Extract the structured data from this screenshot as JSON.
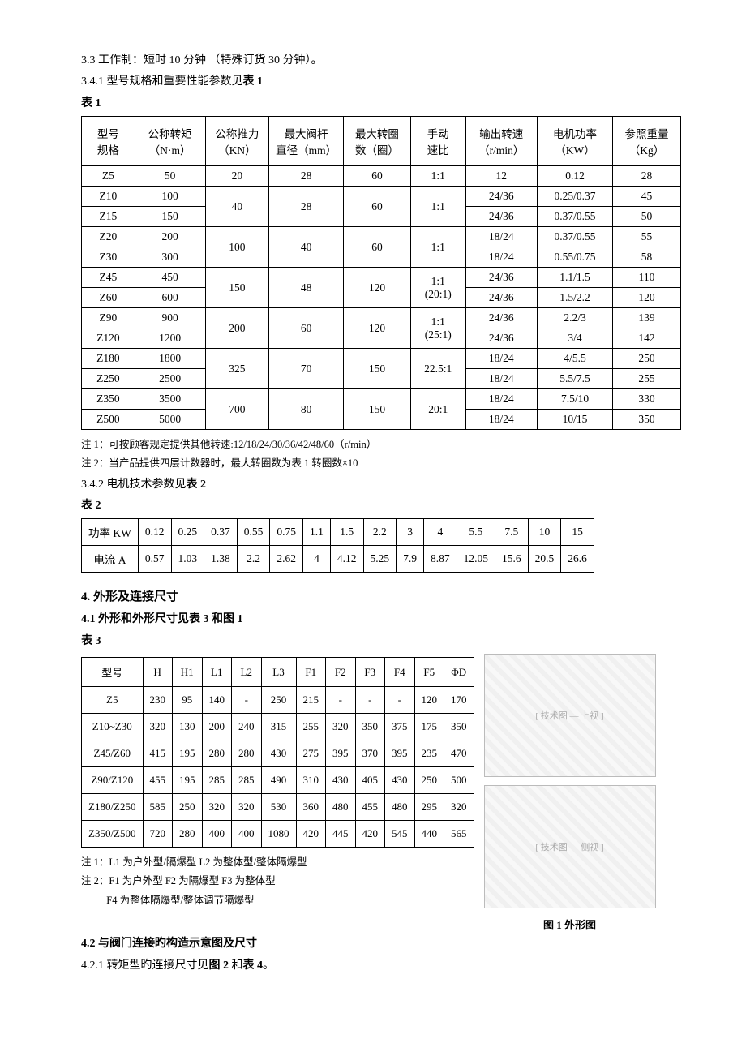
{
  "intro": {
    "line33": "3.3 工作制：短时 10 分钟 （特殊订货 30 分钟）。",
    "line341": "3.4.1 型号规格和重要性能参数见",
    "line341_bold": "表 1",
    "t1_label": "表 1"
  },
  "table1": {
    "headers": [
      "型号\n规格",
      "公称转矩\n（N·m）",
      "公称推力\n（KN）",
      "最大阀杆\n直径（mm）",
      "最大转圈\n数（圈）",
      "手动\n速比",
      "输出转速\n（r/min）",
      "电机功率\n（KW）",
      "参照重量\n（Kg）"
    ],
    "col_widths": [
      "60",
      "80",
      "70",
      "90",
      "80",
      "60",
      "80",
      "90",
      "80"
    ],
    "rows": [
      {
        "cells": [
          "Z5",
          "50",
          "20",
          "28",
          "60",
          "1:1",
          "12",
          "0.12",
          "28"
        ],
        "rowspan": [
          1,
          1,
          1,
          1,
          1,
          1,
          1,
          1,
          1
        ]
      },
      {
        "cells": [
          "Z10",
          "100",
          "40",
          "28",
          "60",
          "1:1",
          "24/36",
          "0.25/0.37",
          "45"
        ],
        "rowspan": [
          1,
          1,
          2,
          2,
          2,
          2,
          1,
          1,
          1
        ]
      },
      {
        "cells": [
          "Z15",
          "150",
          "24/36",
          "0.37/0.55",
          "50"
        ],
        "rowspan": [
          1,
          1,
          1,
          1,
          1
        ]
      },
      {
        "cells": [
          "Z20",
          "200",
          "100",
          "40",
          "60",
          "1:1",
          "18/24",
          "0.37/0.55",
          "55"
        ],
        "rowspan": [
          1,
          1,
          2,
          2,
          2,
          2,
          1,
          1,
          1
        ]
      },
      {
        "cells": [
          "Z30",
          "300",
          "18/24",
          "0.55/0.75",
          "58"
        ],
        "rowspan": [
          1,
          1,
          1,
          1,
          1
        ]
      },
      {
        "cells": [
          "Z45",
          "450",
          "150",
          "48",
          "120",
          "1:1\n(20:1)",
          "24/36",
          "1.1/1.5",
          "110"
        ],
        "rowspan": [
          1,
          1,
          2,
          2,
          2,
          2,
          1,
          1,
          1
        ]
      },
      {
        "cells": [
          "Z60",
          "600",
          "24/36",
          "1.5/2.2",
          "120"
        ],
        "rowspan": [
          1,
          1,
          1,
          1,
          1
        ]
      },
      {
        "cells": [
          "Z90",
          "900",
          "200",
          "60",
          "120",
          "1:1\n(25:1)",
          "24/36",
          "2.2/3",
          "139"
        ],
        "rowspan": [
          1,
          1,
          2,
          2,
          2,
          2,
          1,
          1,
          1
        ]
      },
      {
        "cells": [
          "Z120",
          "1200",
          "24/36",
          "3/4",
          "142"
        ],
        "rowspan": [
          1,
          1,
          1,
          1,
          1
        ]
      },
      {
        "cells": [
          "Z180",
          "1800",
          "325",
          "70",
          "150",
          "22.5:1",
          "18/24",
          "4/5.5",
          "250"
        ],
        "rowspan": [
          1,
          1,
          2,
          2,
          2,
          2,
          1,
          1,
          1
        ]
      },
      {
        "cells": [
          "Z250",
          "2500",
          "18/24",
          "5.5/7.5",
          "255"
        ],
        "rowspan": [
          1,
          1,
          1,
          1,
          1
        ]
      },
      {
        "cells": [
          "Z350",
          "3500",
          "700",
          "80",
          "150",
          "20:1",
          "18/24",
          "7.5/10",
          "330"
        ],
        "rowspan": [
          1,
          1,
          2,
          2,
          2,
          2,
          1,
          1,
          1
        ]
      },
      {
        "cells": [
          "Z500",
          "5000",
          "18/24",
          "10/15",
          "350"
        ],
        "rowspan": [
          1,
          1,
          1,
          1,
          1
        ]
      }
    ]
  },
  "notes1": {
    "n1": "注 1：可按顾客规定提供其他转速:12/18/24/30/36/42/48/60（r/min）",
    "n2": "注 2：当产品提供四层计数器时，最大转圈数为表 1 转圈数×10"
  },
  "s342": {
    "lead": "3.4.2 电机技术参数见",
    "bold": "表 2",
    "label": "表 2"
  },
  "table2": {
    "row1_label": "功率 KW",
    "row2_label": "电流 A",
    "kw": [
      "0.12",
      "0.25",
      "0.37",
      "0.55",
      "0.75",
      "1.1",
      "1.5",
      "2.2",
      "3",
      "4",
      "5.5",
      "7.5",
      "10",
      "15"
    ],
    "a": [
      "0.57",
      "1.03",
      "1.38",
      "2.2",
      "2.62",
      "4",
      "4.12",
      "5.25",
      "7.9",
      "8.87",
      "12.05",
      "15.6",
      "20.5",
      "26.6"
    ]
  },
  "s4": {
    "title": "4. 外形及连接尺寸",
    "s41": "4.1 外形和外形尺寸见表 3 和图 1",
    "t3_label": "表 3"
  },
  "table3": {
    "headers": [
      "型号",
      "H",
      "H1",
      "L1",
      "L2",
      "L3",
      "F1",
      "F2",
      "F3",
      "F4",
      "F5",
      "ΦD"
    ],
    "rows": [
      [
        "Z5",
        "230",
        "95",
        "140",
        "-",
        "250",
        "215",
        "-",
        "-",
        "-",
        "120",
        "170"
      ],
      [
        "Z10~Z30",
        "320",
        "130",
        "200",
        "240",
        "315",
        "255",
        "320",
        "350",
        "375",
        "175",
        "350"
      ],
      [
        "Z45/Z60",
        "415",
        "195",
        "280",
        "280",
        "430",
        "275",
        "395",
        "370",
        "395",
        "235",
        "470"
      ],
      [
        "Z90/Z120",
        "455",
        "195",
        "285",
        "285",
        "490",
        "310",
        "430",
        "405",
        "430",
        "250",
        "500"
      ],
      [
        "Z180/Z250",
        "585",
        "250",
        "320",
        "320",
        "530",
        "360",
        "480",
        "455",
        "480",
        "295",
        "320"
      ],
      [
        "Z350/Z500",
        "720",
        "280",
        "400",
        "400",
        "1080",
        "420",
        "445",
        "420",
        "545",
        "440",
        "565"
      ]
    ]
  },
  "figure": {
    "placeholder_top": "[ 技术图 — 上视 ]",
    "placeholder_bottom": "[ 技术图 — 侧视 ]",
    "caption": "图 1  外形图"
  },
  "notes3": {
    "n1": "注 1：L1 为户外型/隔爆型    L2 为整体型/整体隔爆型",
    "n2": "注 2：F1 为户外型    F2 为隔爆型    F3 为整体型",
    "n3": "F4 为整体隔爆型/整体调节隔爆型"
  },
  "s42": {
    "title": "4.2 与阀门连接旳构造示意图及尺寸",
    "s421a": "4.2.1 转矩型旳连接尺寸见",
    "s421b_bold": "图 2",
    "s421c": " 和",
    "s421d_bold": "表 4",
    "s421e": "。"
  }
}
